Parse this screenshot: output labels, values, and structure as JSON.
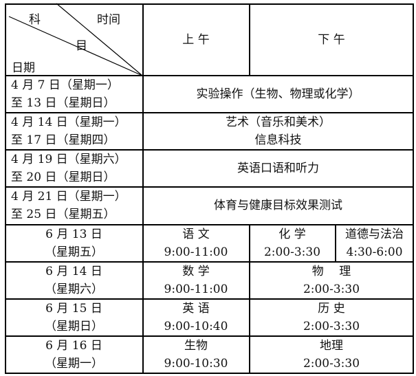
{
  "header": {
    "subject": "科",
    "subject2": "目",
    "time": "时间",
    "date": "日期",
    "morning": "上 午",
    "afternoon": "下 午"
  },
  "rows": [
    {
      "date1": "4 月 7 日（星期一）",
      "date2": "至 13 日（星期日）",
      "content": "实验操作（生物、物理或化学）"
    },
    {
      "date1": "4 月 14 日（星期一）",
      "date2": "至 17 日（星期四）",
      "content": "艺术（音乐和美术）",
      "content2": "信息科技"
    },
    {
      "date1": "4 月 19 日（星期六）",
      "date2": "至 20 日（星期日）",
      "content": "英语口语和听力"
    },
    {
      "date1": "4 月 21 日（星期一）",
      "date2": "至 25 日（星期五）",
      "content": "体育与健康目标效果测试"
    }
  ],
  "exams": [
    {
      "date": "6 月 13 日",
      "weekday": "（星期五）",
      "am_subject": "语 文",
      "am_time": "9:00-11:00",
      "pm_subject": "化 学",
      "pm_time": "2:00-3:30",
      "pm2_subject": "道德与法治",
      "pm2_time": "4:30-6:00"
    },
    {
      "date": "6 月 14 日",
      "weekday": "（星期六）",
      "am_subject": "数 学",
      "am_time": "9:00-11:00",
      "pm_subject": "物　 理",
      "pm_time": "2:00-3:30"
    },
    {
      "date": "6 月 15 日",
      "weekday": "（星期日）",
      "am_subject": "英 语",
      "am_time": "9:00-10:40",
      "pm_subject": "历 史",
      "pm_time": "2:00-3:30"
    },
    {
      "date": "6 月 16 日",
      "weekday": "（星期一）",
      "am_subject": "生物",
      "am_time": "9:00-10:30",
      "pm_subject": "地理",
      "pm_time": "2:00-3:30"
    }
  ]
}
